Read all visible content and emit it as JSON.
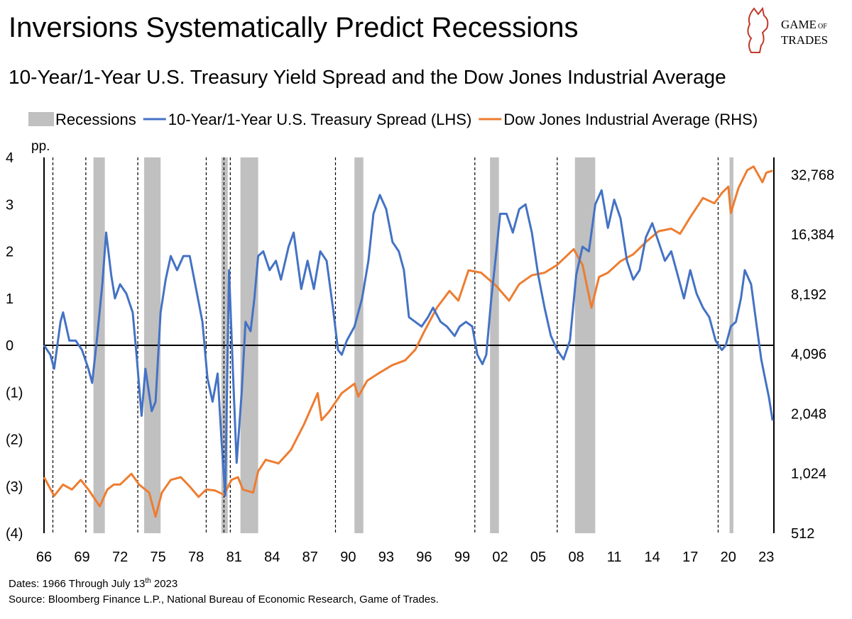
{
  "chart_data": {
    "type": "line",
    "title": "Inversions Systematically Predict Recessions",
    "subtitle": "10-Year/1-Year U.S. Treasury Yield Spread and the Dow Jones Industrial Average",
    "ylabel": "pp.",
    "recession_label": "Recessions",
    "recession_color": "#c0c0c0",
    "recessions": [
      [
        1969.9,
        1970.8
      ],
      [
        1973.9,
        1975.2
      ],
      [
        1980.0,
        1980.5
      ],
      [
        1981.5,
        1982.9
      ],
      [
        1990.5,
        1991.2
      ],
      [
        2001.2,
        2001.9
      ],
      [
        2007.9,
        2009.5
      ],
      [
        2020.1,
        2020.4
      ]
    ],
    "inversions": [
      1966.7,
      1969.3,
      1973.4,
      1978.8,
      1980.2,
      1980.7,
      1989.0,
      2000.0,
      2006.5,
      2019.2
    ],
    "xlim": [
      1966,
      2023.6
    ],
    "xticks": [
      {
        "value": 1966,
        "label": "66"
      },
      {
        "value": 1969,
        "label": "69"
      },
      {
        "value": 1972,
        "label": "72"
      },
      {
        "value": 1975,
        "label": "75"
      },
      {
        "value": 1978,
        "label": "78"
      },
      {
        "value": 1981,
        "label": "81"
      },
      {
        "value": 1984,
        "label": "84"
      },
      {
        "value": 1987,
        "label": "87"
      },
      {
        "value": 1990,
        "label": "90"
      },
      {
        "value": 1993,
        "label": "93"
      },
      {
        "value": 1996,
        "label": "96"
      },
      {
        "value": 1999,
        "label": "99"
      },
      {
        "value": 2002,
        "label": "02"
      },
      {
        "value": 2005,
        "label": "05"
      },
      {
        "value": 2008,
        "label": "08"
      },
      {
        "value": 2011,
        "label": "11"
      },
      {
        "value": 2014,
        "label": "14"
      },
      {
        "value": 2017,
        "label": "17"
      },
      {
        "value": 2020,
        "label": "20"
      },
      {
        "value": 2023,
        "label": "23"
      }
    ],
    "ylim": [
      -4,
      4
    ],
    "yticks": [
      4,
      3,
      2,
      1,
      0,
      {
        "value": -1,
        "label": "(1)"
      },
      {
        "value": -2,
        "label": "(2)"
      },
      {
        "value": -3,
        "label": "(3)"
      },
      {
        "value": -4,
        "label": "(4)"
      }
    ],
    "y2lim": [
      512,
      40000
    ],
    "y2scale": "log",
    "y2ticks": [
      512,
      {
        "value": 1024,
        "label": "1,024"
      },
      {
        "value": 2048,
        "label": "2,048"
      },
      {
        "value": 4096,
        "label": "4,096"
      },
      {
        "value": 8192,
        "label": "8,192"
      },
      {
        "value": 16384,
        "label": "16,384"
      },
      {
        "value": 32768,
        "label": "32,768"
      }
    ],
    "series": [
      {
        "name": "10-Year/1-Year U.S. Treasury Spread (LHS)",
        "color": "#4472c4",
        "x": [
          1966.0,
          1966.5,
          1966.8,
          1967.3,
          1967.5,
          1968.0,
          1968.5,
          1969.0,
          1969.5,
          1969.8,
          1970.2,
          1970.6,
          1970.9,
          1971.3,
          1971.6,
          1972.0,
          1972.5,
          1973.0,
          1973.3,
          1973.7,
          1974.0,
          1974.5,
          1974.8,
          1975.2,
          1975.6,
          1976.0,
          1976.5,
          1977.0,
          1977.5,
          1978.0,
          1978.5,
          1978.9,
          1979.3,
          1979.7,
          1980.0,
          1980.3,
          1980.6,
          1980.9,
          1981.2,
          1981.6,
          1981.9,
          1982.3,
          1982.6,
          1982.9,
          1983.3,
          1983.8,
          1984.3,
          1984.7,
          1985.3,
          1985.7,
          1986.3,
          1986.8,
          1987.3,
          1987.8,
          1988.3,
          1988.8,
          1989.2,
          1989.5,
          1989.9,
          1990.5,
          1991.1,
          1991.6,
          1992.0,
          1992.5,
          1993.0,
          1993.5,
          1994.0,
          1994.4,
          1994.8,
          1995.3,
          1995.8,
          1996.3,
          1996.7,
          1997.3,
          1997.8,
          1998.4,
          1998.8,
          1999.3,
          1999.8,
          2000.2,
          2000.6,
          2000.9,
          2001.3,
          2001.7,
          2002.0,
          2002.5,
          2003.0,
          2003.5,
          2004.0,
          2004.5,
          2005.0,
          2005.5,
          2006.0,
          2006.5,
          2007.0,
          2007.5,
          2008.0,
          2008.5,
          2009.0,
          2009.5,
          2010.0,
          2010.5,
          2011.0,
          2011.5,
          2012.0,
          2012.5,
          2013.0,
          2013.5,
          2014.0,
          2014.5,
          2015.0,
          2015.5,
          2016.0,
          2016.5,
          2017.0,
          2017.5,
          2018.0,
          2018.5,
          2019.0,
          2019.5,
          2019.8,
          2020.2,
          2020.6,
          2021.0,
          2021.3,
          2021.8,
          2022.2,
          2022.6,
          2022.9,
          2023.2,
          2023.5
        ],
        "values": [
          0,
          -0.2,
          -0.5,
          0.5,
          0.7,
          0.1,
          0.1,
          -0.1,
          -0.5,
          -0.8,
          0.2,
          1.3,
          2.4,
          1.5,
          1.0,
          1.3,
          1.1,
          0.7,
          -0.2,
          -1.5,
          -0.5,
          -1.4,
          -1.2,
          0.7,
          1.4,
          1.9,
          1.6,
          1.9,
          1.9,
          1.2,
          0.5,
          -0.7,
          -1.2,
          -0.6,
          -2.0,
          -3.2,
          1.6,
          -0.5,
          -2.5,
          -1.0,
          0.5,
          0.3,
          1.0,
          1.9,
          2.0,
          1.6,
          1.8,
          1.4,
          2.1,
          2.4,
          1.2,
          1.8,
          1.2,
          2.0,
          1.8,
          0.8,
          -0.1,
          -0.2,
          0.1,
          0.4,
          1.0,
          1.8,
          2.8,
          3.2,
          2.9,
          2.2,
          2.0,
          1.6,
          0.6,
          0.5,
          0.4,
          0.6,
          0.8,
          0.5,
          0.4,
          0.2,
          0.4,
          0.5,
          0.4,
          -0.2,
          -0.4,
          -0.2,
          1.0,
          2.0,
          2.8,
          2.8,
          2.4,
          2.9,
          3.0,
          2.4,
          1.5,
          0.8,
          0.2,
          -0.1,
          -0.3,
          0.1,
          1.5,
          2.1,
          2.0,
          3.0,
          3.3,
          2.5,
          3.1,
          2.7,
          1.8,
          1.4,
          1.6,
          2.3,
          2.6,
          2.2,
          1.8,
          2.0,
          1.5,
          1.0,
          1.6,
          1.1,
          0.8,
          0.6,
          0.1,
          -0.1,
          0.0,
          0.4,
          0.5,
          1.0,
          1.6,
          1.3,
          0.5,
          -0.3,
          -0.7,
          -1.1,
          -1.6
        ]
      },
      {
        "name": "Dow Jones Industrial Average (RHS)",
        "color": "#ed7d31",
        "axis": "y2",
        "x": [
          1966.0,
          1966.8,
          1967.5,
          1968.2,
          1968.9,
          1969.5,
          1970.4,
          1971.0,
          1971.5,
          1972.0,
          1972.9,
          1973.5,
          1974.3,
          1974.8,
          1975.3,
          1976.0,
          1976.8,
          1977.5,
          1978.2,
          1978.8,
          1979.5,
          1980.2,
          1980.8,
          1981.3,
          1981.7,
          1982.5,
          1982.9,
          1983.5,
          1984.5,
          1985.5,
          1986.5,
          1987.6,
          1987.9,
          1988.5,
          1989.5,
          1990.5,
          1990.8,
          1991.5,
          1992.5,
          1993.5,
          1994.5,
          1995.3,
          1996.0,
          1997.0,
          1998.0,
          1998.7,
          1999.5,
          2000.5,
          2001.7,
          2002.7,
          2003.5,
          2004.5,
          2005.5,
          2006.5,
          2007.8,
          2008.5,
          2009.2,
          2009.8,
          2010.5,
          2011.5,
          2012.5,
          2013.5,
          2014.5,
          2015.5,
          2016.2,
          2017.0,
          2018.0,
          2018.9,
          2019.5,
          2020.0,
          2020.2,
          2020.8,
          2021.5,
          2022.0,
          2022.7,
          2023.0,
          2023.5
        ],
        "values": [
          980,
          790,
          900,
          850,
          950,
          850,
          700,
          850,
          900,
          900,
          1020,
          900,
          820,
          620,
          820,
          950,
          980,
          880,
          780,
          850,
          840,
          800,
          950,
          980,
          850,
          820,
          1050,
          1200,
          1150,
          1350,
          1800,
          2600,
          1900,
          2100,
          2600,
          2900,
          2500,
          3000,
          3300,
          3600,
          3800,
          4300,
          5300,
          7000,
          8500,
          7600,
          10800,
          10500,
          9000,
          7600,
          9200,
          10200,
          10500,
          11500,
          13800,
          11500,
          7000,
          10000,
          10500,
          12000,
          13000,
          15000,
          17000,
          17500,
          16500,
          20000,
          25000,
          23500,
          26500,
          28500,
          21000,
          28000,
          34500,
          36000,
          30000,
          33500,
          34300
        ]
      }
    ],
    "footnote": {
      "dates_pre": "Dates: 1966 Through July 13",
      "dates_sup": "th",
      "dates_post": " 2023",
      "source": "Source: Bloomberg Finance L.P., National Bureau of Economic Research, Game of Trades."
    },
    "logo": {
      "line1": "GAME",
      "line1b": "OF",
      "line2": "TRADES"
    }
  }
}
